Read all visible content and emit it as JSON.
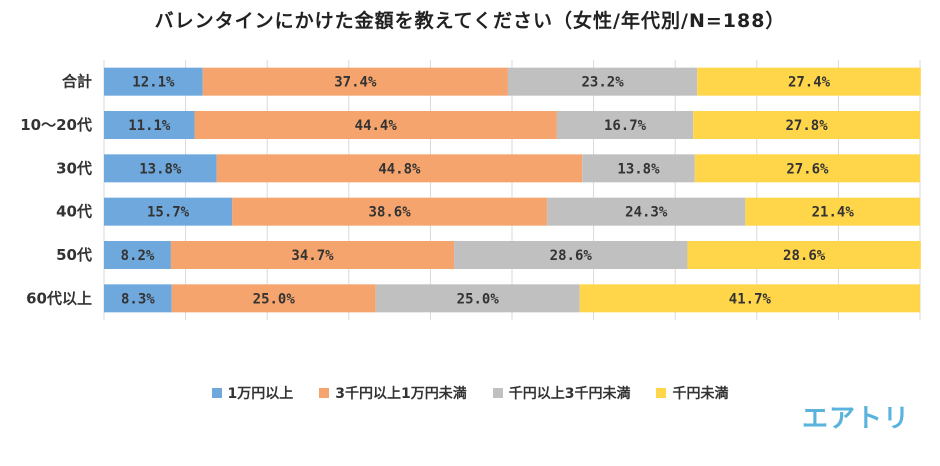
{
  "chart_data": {
    "type": "bar",
    "orientation": "horizontal",
    "stacked": true,
    "title": "バレンタインにかけた金額を教えてください（女性/年代別/N=188）",
    "categories": [
      "合計",
      "10〜20代",
      "30代",
      "40代",
      "50代",
      "60代以上"
    ],
    "series": [
      {
        "name": "1万円以上",
        "color": "#6fa8dc",
        "values": [
          12.1,
          11.1,
          13.8,
          15.7,
          8.2,
          8.3
        ],
        "labels": [
          "12.1%",
          "11.1%",
          "13.8%",
          "15.7%",
          "8.2%",
          "8.3%"
        ]
      },
      {
        "name": "3千円以上1万円未満",
        "color": "#f4a46c",
        "values": [
          37.4,
          44.4,
          44.8,
          38.6,
          34.7,
          25.0
        ],
        "labels": [
          "37.4%",
          "44.4%",
          "44.8%",
          "38.6%",
          "34.7%",
          "25.0%"
        ]
      },
      {
        "name": "千円以上3千円未満",
        "color": "#c0c0c0",
        "values": [
          23.2,
          16.7,
          13.8,
          24.3,
          28.6,
          25.0
        ],
        "labels": [
          "23.2%",
          "16.7%",
          "13.8%",
          "24.3%",
          "28.6%",
          "25.0%"
        ]
      },
      {
        "name": "千円未満",
        "color": "#ffd54a",
        "values": [
          27.4,
          27.8,
          27.6,
          21.4,
          28.6,
          41.7
        ],
        "labels": [
          "27.4%",
          "27.8%",
          "27.6%",
          "21.4%",
          "28.6%",
          "41.7%"
        ]
      }
    ],
    "xlim": [
      0,
      100
    ],
    "grid": true,
    "legend_position": "bottom"
  },
  "brand": {
    "logo_text": "エアトリ"
  }
}
